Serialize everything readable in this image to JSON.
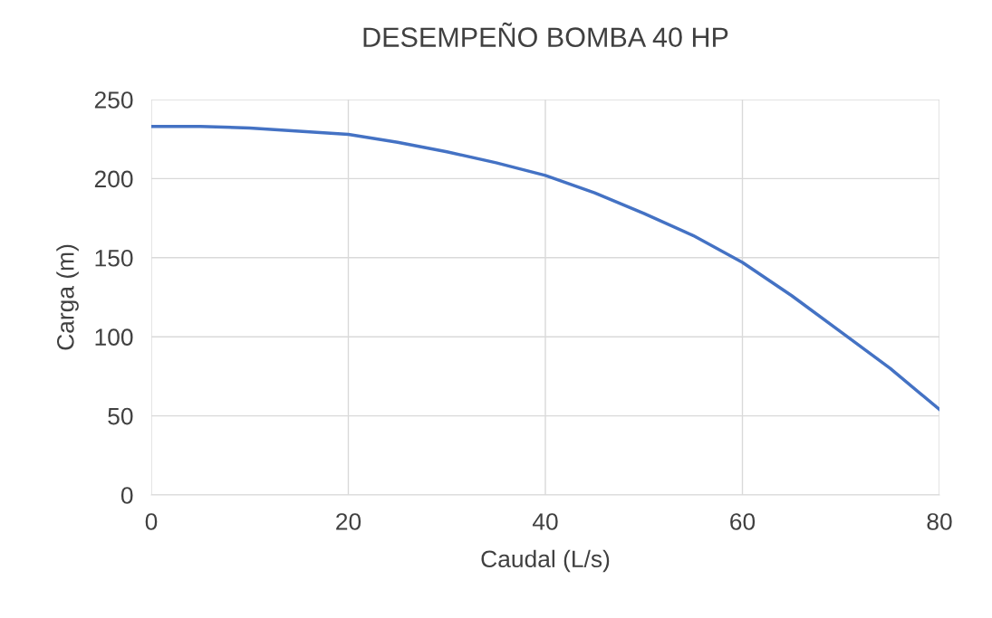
{
  "chart_data": {
    "type": "line",
    "title": "DESEMPEÑO BOMBA 40 HP",
    "xlabel": "Caudal (L/s)",
    "ylabel": "Carga (m)",
    "x": [
      0,
      5,
      10,
      15,
      20,
      25,
      30,
      35,
      40,
      45,
      50,
      55,
      60,
      65,
      70,
      75,
      80
    ],
    "series": [
      {
        "color": "#4472c4",
        "values": [
          233,
          233,
          232,
          230,
          228,
          223,
          217,
          210,
          202,
          191,
          178,
          164,
          147,
          126,
          103,
          80,
          54
        ]
      }
    ],
    "xlim": [
      0,
      80
    ],
    "xticks": [
      0,
      20,
      40,
      60,
      80
    ],
    "ylim": [
      0,
      250
    ],
    "yticks": [
      0,
      50,
      100,
      150,
      200,
      250
    ],
    "grid": true,
    "legend": false,
    "marker": "none",
    "line_style": "solid"
  }
}
